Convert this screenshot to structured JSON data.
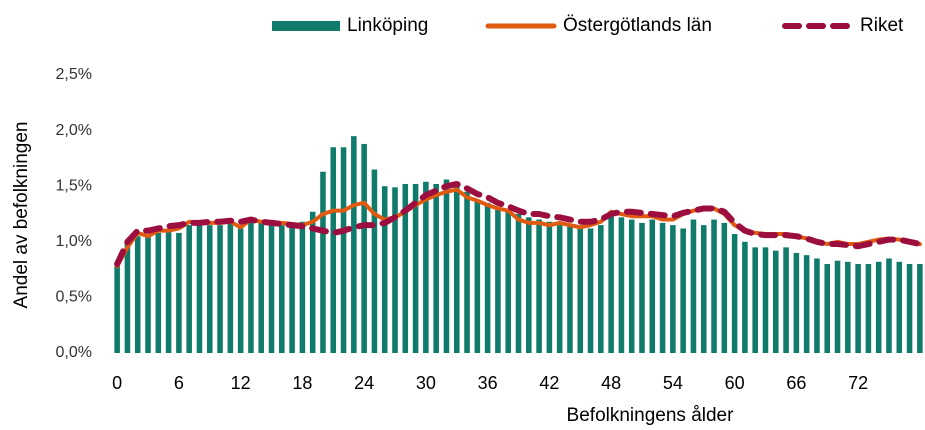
{
  "chart_data": {
    "type": "bar_line",
    "x_label": "Befolkningens ålder",
    "y_label": "Andel av befolkningen",
    "categories": [
      "0",
      null,
      null,
      null,
      null,
      null,
      "6",
      null,
      null,
      null,
      null,
      null,
      "12",
      null,
      null,
      null,
      null,
      null,
      "18",
      null,
      null,
      null,
      null,
      null,
      "24",
      null,
      null,
      null,
      null,
      null,
      "30",
      null,
      null,
      null,
      null,
      null,
      "36",
      null,
      null,
      null,
      null,
      null,
      "42",
      null,
      null,
      null,
      null,
      null,
      "48",
      null,
      null,
      null,
      null,
      null,
      "54",
      null,
      null,
      null,
      null,
      null,
      "60",
      null,
      null,
      null,
      null,
      null,
      "66",
      null,
      null,
      null,
      null,
      null,
      "72",
      null,
      null,
      null,
      null,
      null,
      null
    ],
    "ylim": [
      0,
      2.5
    ],
    "yticks": [
      {
        "value": 0,
        "label": "0,0%"
      },
      {
        "value": 0.5,
        "label": "0,5%"
      },
      {
        "value": 1,
        "label": "1,0%"
      },
      {
        "value": 1.5,
        "label": "1,5%"
      },
      {
        "value": 2,
        "label": "2,0%"
      },
      {
        "value": 2.5,
        "label": "2,5%"
      }
    ],
    "grid": false,
    "legend": "top",
    "series": [
      {
        "name": "Linköping",
        "kind": "bar",
        "color": "#107a6b",
        "values": [
          0.78,
          0.98,
          1.05,
          1.05,
          1.08,
          1.1,
          1.08,
          1.15,
          1.18,
          1.15,
          1.15,
          1.18,
          1.12,
          1.2,
          1.18,
          1.15,
          1.15,
          1.15,
          1.18,
          1.27,
          1.63,
          1.85,
          1.85,
          1.95,
          1.88,
          1.65,
          1.5,
          1.49,
          1.52,
          1.52,
          1.54,
          1.52,
          1.56,
          1.52,
          1.45,
          1.38,
          1.35,
          1.3,
          1.28,
          1.25,
          1.22,
          1.2,
          1.18,
          1.15,
          1.15,
          1.12,
          1.12,
          1.15,
          1.27,
          1.22,
          1.2,
          1.17,
          1.2,
          1.17,
          1.15,
          1.12,
          1.2,
          1.15,
          1.2,
          1.17,
          1.07,
          1.0,
          0.95,
          0.95,
          0.92,
          0.95,
          0.9,
          0.88,
          0.85,
          0.8,
          0.83,
          0.82,
          0.8,
          0.8,
          0.82,
          0.85,
          0.82,
          0.8,
          0.8
        ]
      },
      {
        "name": "Östergötlands län",
        "kind": "line",
        "color": "#e05a10",
        "values": [
          0.78,
          0.95,
          1.08,
          1.05,
          1.1,
          1.1,
          1.12,
          1.18,
          1.17,
          1.17,
          1.17,
          1.18,
          1.13,
          1.2,
          1.18,
          1.17,
          1.17,
          1.16,
          1.15,
          1.18,
          1.25,
          1.28,
          1.28,
          1.33,
          1.35,
          1.25,
          1.2,
          1.22,
          1.27,
          1.33,
          1.38,
          1.42,
          1.45,
          1.47,
          1.4,
          1.37,
          1.33,
          1.3,
          1.28,
          1.2,
          1.17,
          1.17,
          1.15,
          1.17,
          1.15,
          1.13,
          1.15,
          1.18,
          1.27,
          1.25,
          1.23,
          1.23,
          1.23,
          1.2,
          1.2,
          1.25,
          1.28,
          1.3,
          1.3,
          1.25,
          1.15,
          1.1,
          1.08,
          1.07,
          1.07,
          1.07,
          1.05,
          1.03,
          1.0,
          0.98,
          1.0,
          0.98,
          0.98,
          1.0,
          1.02,
          1.03,
          1.02,
          1.0,
          0.98
        ]
      },
      {
        "name": "Riket",
        "kind": "dashed",
        "color": "#9b0e3f",
        "values": [
          0.8,
          1.0,
          1.1,
          1.1,
          1.12,
          1.14,
          1.15,
          1.17,
          1.17,
          1.18,
          1.18,
          1.19,
          1.18,
          1.2,
          1.18,
          1.17,
          1.16,
          1.15,
          1.14,
          1.12,
          1.1,
          1.08,
          1.1,
          1.13,
          1.15,
          1.15,
          1.17,
          1.22,
          1.28,
          1.35,
          1.42,
          1.46,
          1.5,
          1.52,
          1.48,
          1.43,
          1.4,
          1.35,
          1.32,
          1.28,
          1.25,
          1.25,
          1.23,
          1.22,
          1.2,
          1.18,
          1.18,
          1.2,
          1.25,
          1.27,
          1.27,
          1.26,
          1.25,
          1.24,
          1.23,
          1.26,
          1.28,
          1.3,
          1.3,
          1.27,
          1.17,
          1.1,
          1.07,
          1.06,
          1.06,
          1.06,
          1.05,
          1.03,
          1.0,
          0.98,
          0.98,
          0.97,
          0.96,
          0.98,
          1.0,
          1.02,
          1.02,
          1.0,
          0.98
        ]
      }
    ]
  }
}
